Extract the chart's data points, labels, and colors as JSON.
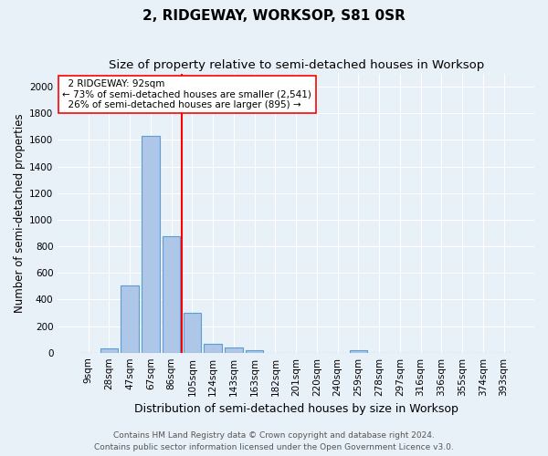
{
  "title": "2, RIDGEWAY, WORKSOP, S81 0SR",
  "subtitle": "Size of property relative to semi-detached houses in Worksop",
  "xlabel": "Distribution of semi-detached houses by size in Worksop",
  "ylabel": "Number of semi-detached properties",
  "footnote1": "Contains HM Land Registry data © Crown copyright and database right 2024.",
  "footnote2": "Contains public sector information licensed under the Open Government Licence v3.0.",
  "bin_labels": [
    "9sqm",
    "28sqm",
    "47sqm",
    "67sqm",
    "86sqm",
    "105sqm",
    "124sqm",
    "143sqm",
    "163sqm",
    "182sqm",
    "201sqm",
    "220sqm",
    "240sqm",
    "259sqm",
    "278sqm",
    "297sqm",
    "316sqm",
    "336sqm",
    "355sqm",
    "374sqm",
    "393sqm"
  ],
  "bar_values": [
    0,
    35,
    505,
    1630,
    875,
    300,
    65,
    40,
    15,
    0,
    0,
    0,
    0,
    15,
    0,
    0,
    0,
    0,
    0,
    0,
    0
  ],
  "bar_color": "#aec6e8",
  "bar_edge_color": "#5a9fd4",
  "vline_x_pos": 4.5,
  "vline_color": "red",
  "property_label": "2 RIDGEWAY: 92sqm",
  "pct_smaller": 73,
  "n_smaller": 2541,
  "pct_larger": 26,
  "n_larger": 895,
  "annotation_box_color": "white",
  "annotation_box_edge": "red",
  "ylim": [
    0,
    2100
  ],
  "yticks": [
    0,
    200,
    400,
    600,
    800,
    1000,
    1200,
    1400,
    1600,
    1800,
    2000
  ],
  "bg_color": "#e8f0f8",
  "grid_color": "#ffffff",
  "title_fontsize": 11,
  "subtitle_fontsize": 9.5,
  "axis_label_fontsize": 9,
  "ylabel_fontsize": 8.5,
  "tick_fontsize": 7.5,
  "footnote_fontsize": 6.5
}
